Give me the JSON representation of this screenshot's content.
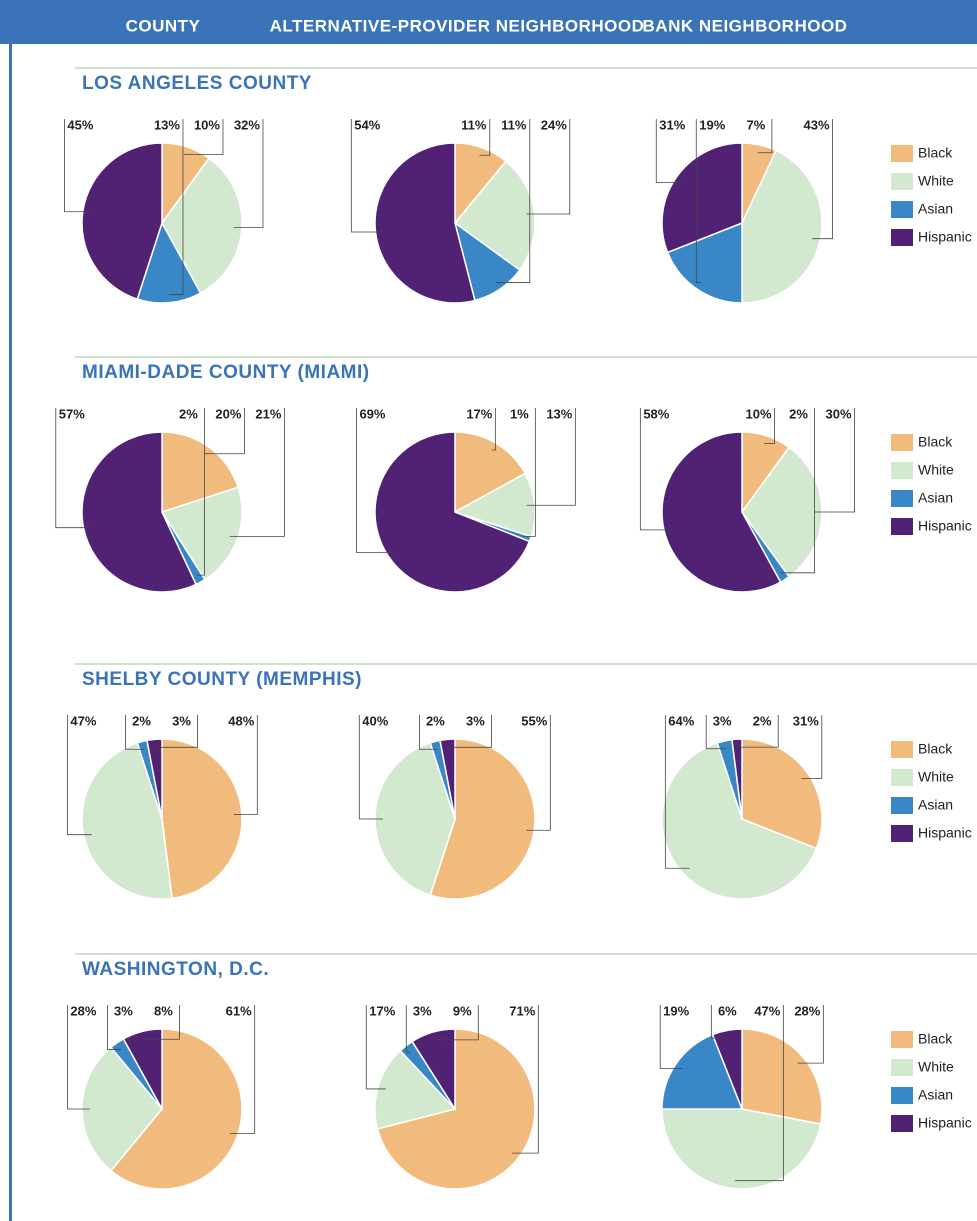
{
  "columns": [
    "COUNTY",
    "ALTERNATIVE-PROVIDER NEIGHBORHOOD",
    "BANK NEIGHBORHOOD"
  ],
  "sections": [
    {
      "title": "LOS ANGELES COUNTY"
    },
    {
      "title": "MIAMI-DADE  COUNTY (MIAMI)"
    },
    {
      "title": "SHELBY  COUNTY (MEMPHIS)"
    },
    {
      "title": "WASHINGTON, D.C."
    }
  ],
  "legend": {
    "categories": [
      "Black",
      "White",
      "Asian",
      "Hispanic"
    ],
    "colors": [
      "#f2bb7e",
      "#d2e8cf",
      "#3a87c8",
      "#512174"
    ]
  },
  "chart_data": [
    {
      "type": "pie",
      "values": [
        10,
        32,
        13,
        45
      ],
      "value_labels": [
        "10%",
        "32%",
        "13%",
        "45%"
      ]
    },
    {
      "type": "pie",
      "values": [
        11,
        24,
        11,
        54
      ],
      "value_labels": [
        "11%",
        "24%",
        "11%",
        "54%"
      ]
    },
    {
      "type": "pie",
      "values": [
        7,
        43,
        19,
        31
      ],
      "value_labels": [
        "7%",
        "43%",
        "19%",
        "31%"
      ]
    },
    {
      "type": "pie",
      "values": [
        20,
        21,
        2,
        57
      ],
      "value_labels": [
        "20%",
        "21%",
        "2%",
        "57%"
      ]
    },
    {
      "type": "pie",
      "values": [
        17,
        13,
        1,
        69
      ],
      "value_labels": [
        "17%",
        "13%",
        "1%",
        "69%"
      ]
    },
    {
      "type": "pie",
      "values": [
        10,
        30,
        2,
        58
      ],
      "value_labels": [
        "10%",
        "30%",
        "2%",
        "58%"
      ]
    },
    {
      "type": "pie",
      "values": [
        48,
        47,
        2,
        3
      ],
      "value_labels": [
        "48%",
        "47%",
        "2%",
        "3%"
      ]
    },
    {
      "type": "pie",
      "values": [
        55,
        40,
        2,
        3
      ],
      "value_labels": [
        "55%",
        "40%",
        "2%",
        "3%"
      ]
    },
    {
      "type": "pie",
      "values": [
        31,
        64,
        3,
        2
      ],
      "value_labels": [
        "31%",
        "64%",
        "3%",
        "2%"
      ]
    },
    {
      "type": "pie",
      "values": [
        61,
        28,
        3,
        8
      ],
      "value_labels": [
        "61%",
        "28%",
        "3%",
        "8%"
      ]
    },
    {
      "type": "pie",
      "values": [
        71,
        17,
        3,
        9
      ],
      "value_labels": [
        "71%",
        "17%",
        "3%",
        "9%"
      ]
    },
    {
      "type": "pie",
      "values": [
        28,
        47,
        19,
        6
      ],
      "value_labels": [
        "28%",
        "47%",
        "19%",
        "6%"
      ]
    }
  ]
}
